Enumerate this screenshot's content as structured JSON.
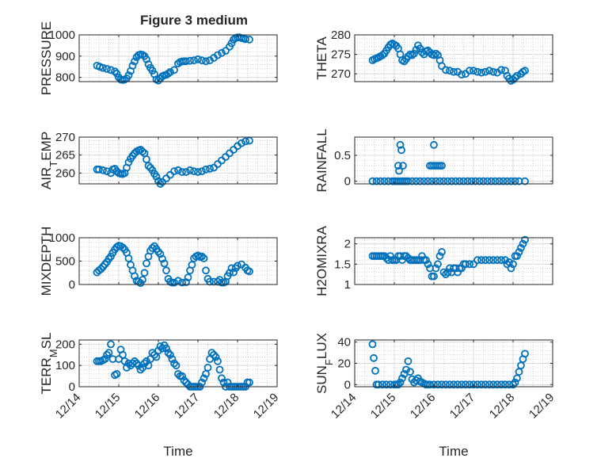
{
  "figure": {
    "title": "Figure 3 medium",
    "marker_color": "#0072BD"
  },
  "chart_data": [
    {
      "id": "pressure",
      "type": "scatter",
      "ylabel": "PRESSURE",
      "xlabel": "",
      "ylim": [
        780,
        1000
      ],
      "yticks": [
        800,
        900,
        1000
      ],
      "ytick_labels": [
        "800",
        "900",
        "1000"
      ],
      "xlim": [
        0,
        5
      ],
      "xticks": [
        0,
        1,
        2,
        3,
        4,
        5
      ],
      "xtick_labels": [],
      "grid": true,
      "x": [
        0.45,
        0.52,
        0.6,
        0.7,
        0.8,
        0.9,
        0.95,
        1.0,
        1.05,
        1.1,
        1.15,
        1.2,
        1.25,
        1.3,
        1.35,
        1.4,
        1.45,
        1.5,
        1.55,
        1.6,
        1.65,
        1.7,
        1.75,
        1.8,
        1.85,
        1.9,
        1.95,
        2.0,
        2.05,
        2.1,
        2.15,
        2.2,
        2.25,
        2.3,
        2.4,
        2.5,
        2.55,
        2.6,
        2.65,
        2.7,
        2.8,
        2.9,
        3.0,
        3.1,
        3.2,
        3.3,
        3.4,
        3.5,
        3.6,
        3.7,
        3.8,
        3.85,
        3.9,
        3.95,
        4.0,
        4.05,
        4.1,
        4.15,
        4.2,
        4.3
      ],
      "y": [
        855,
        850,
        845,
        840,
        835,
        828,
        818,
        800,
        790,
        788,
        790,
        795,
        810,
        830,
        855,
        875,
        895,
        905,
        908,
        906,
        900,
        885,
        862,
        845,
        832,
        815,
        790,
        785,
        795,
        805,
        810,
        812,
        818,
        825,
        835,
        865,
        872,
        875,
        876,
        876,
        878,
        880,
        885,
        880,
        876,
        880,
        892,
        905,
        915,
        925,
        945,
        960,
        978,
        985,
        988,
        988,
        985,
        983,
        980,
        978
      ]
    },
    {
      "id": "theta",
      "type": "scatter",
      "ylabel": "THETA",
      "xlabel": "",
      "ylim": [
        268,
        280
      ],
      "yticks": [
        270,
        275,
        280
      ],
      "ytick_labels": [
        "270",
        "275",
        "280"
      ],
      "xlim": [
        0,
        5
      ],
      "xticks": [
        0,
        1,
        2,
        3,
        4,
        5
      ],
      "xtick_labels": [],
      "grid": true,
      "x": [
        0.45,
        0.5,
        0.55,
        0.6,
        0.65,
        0.7,
        0.75,
        0.8,
        0.85,
        0.9,
        0.95,
        1.0,
        1.05,
        1.1,
        1.15,
        1.2,
        1.25,
        1.3,
        1.35,
        1.4,
        1.45,
        1.5,
        1.55,
        1.6,
        1.65,
        1.7,
        1.75,
        1.8,
        1.85,
        1.9,
        1.95,
        2.0,
        2.05,
        2.1,
        2.15,
        2.2,
        2.3,
        2.4,
        2.5,
        2.6,
        2.7,
        2.8,
        2.9,
        3.0,
        3.1,
        3.2,
        3.3,
        3.4,
        3.5,
        3.6,
        3.7,
        3.8,
        3.85,
        3.9,
        3.95,
        4.0,
        4.05,
        4.1,
        4.2,
        4.25,
        4.3
      ],
      "y": [
        273.5,
        273.8,
        274.0,
        274.2,
        274.5,
        274.8,
        275.2,
        276.0,
        276.8,
        277.5,
        277.8,
        277.5,
        277.2,
        276.5,
        275.0,
        273.5,
        273.2,
        273.8,
        274.5,
        275.0,
        274.8,
        275.2,
        276.2,
        277.3,
        276.5,
        275.5,
        275.0,
        275.8,
        276.0,
        275.5,
        275.0,
        274.8,
        275.2,
        274.8,
        273.5,
        272.0,
        271.0,
        270.8,
        270.5,
        270.5,
        269.8,
        270.0,
        270.8,
        270.8,
        270.5,
        270.3,
        270.5,
        270.8,
        270.5,
        270.3,
        271.0,
        270.8,
        269.5,
        268.8,
        268.2,
        268.5,
        269.0,
        269.5,
        270.0,
        270.5,
        270.8
      ]
    },
    {
      "id": "air_temp",
      "type": "scatter",
      "ylabel": "AIR_TEMP",
      "xlabel": "",
      "ylim": [
        257,
        270
      ],
      "yticks": [
        260,
        265,
        270
      ],
      "ytick_labels": [
        "260",
        "265",
        "270"
      ],
      "xlim": [
        0,
        5
      ],
      "xticks": [
        0,
        1,
        2,
        3,
        4,
        5
      ],
      "xtick_labels": [],
      "grid": true,
      "x": [
        0.45,
        0.5,
        0.6,
        0.7,
        0.8,
        0.85,
        0.9,
        0.95,
        1.0,
        1.05,
        1.1,
        1.15,
        1.2,
        1.25,
        1.3,
        1.35,
        1.4,
        1.45,
        1.5,
        1.55,
        1.6,
        1.65,
        1.7,
        1.75,
        1.8,
        1.85,
        1.9,
        1.95,
        2.0,
        2.05,
        2.1,
        2.2,
        2.3,
        2.4,
        2.5,
        2.6,
        2.7,
        2.8,
        2.9,
        3.0,
        3.1,
        3.2,
        3.3,
        3.4,
        3.5,
        3.6,
        3.7,
        3.8,
        3.9,
        4.0,
        4.1,
        4.2,
        4.3
      ],
      "y": [
        261.0,
        261.0,
        260.8,
        260.5,
        260.0,
        261.0,
        261.2,
        260.5,
        260.0,
        259.8,
        259.7,
        260.0,
        261.5,
        263.0,
        264.0,
        264.8,
        265.5,
        266.0,
        266.3,
        266.5,
        266.0,
        265.5,
        263.8,
        262.0,
        261.5,
        260.8,
        259.8,
        259.0,
        257.8,
        257.0,
        257.5,
        258.5,
        259.5,
        260.5,
        260.8,
        260.3,
        260.3,
        260.8,
        260.5,
        260.3,
        260.5,
        261.0,
        261.2,
        261.5,
        262.5,
        263.5,
        264.5,
        265.5,
        266.5,
        267.5,
        268.3,
        268.8,
        269.0
      ]
    },
    {
      "id": "rainfall",
      "type": "scatter",
      "ylabel": "RAINFALL",
      "xlabel": "",
      "ylim": [
        -0.05,
        0.85
      ],
      "yticks": [
        0,
        0.5
      ],
      "ytick_labels": [
        "0",
        "0.5"
      ],
      "xlim": [
        0,
        5
      ],
      "xticks": [
        0,
        1,
        2,
        3,
        4,
        5
      ],
      "xtick_labels": [],
      "grid": true,
      "x": [
        0.45,
        0.55,
        0.65,
        0.75,
        0.85,
        0.95,
        1.0,
        1.05,
        1.1,
        1.15,
        1.2,
        1.25,
        1.3,
        1.35,
        1.45,
        1.55,
        1.65,
        1.75,
        1.85,
        1.95,
        2.05,
        2.15,
        2.25,
        2.35,
        2.45,
        2.55,
        2.65,
        2.75,
        2.85,
        2.95,
        3.05,
        3.15,
        3.25,
        3.35,
        3.45,
        3.55,
        3.65,
        3.75,
        3.85,
        3.95,
        4.05,
        4.15,
        4.3,
        1.1,
        1.12,
        1.15,
        1.18,
        1.22,
        1.9,
        1.95,
        2.0,
        2.05,
        2.1,
        2.15,
        2.2,
        2.0
      ],
      "y": [
        0,
        0,
        0,
        0,
        0,
        0,
        0,
        0,
        0,
        0,
        0,
        0,
        0,
        0,
        0,
        0,
        0,
        0,
        0,
        0,
        0,
        0,
        0,
        0,
        0,
        0,
        0,
        0,
        0,
        0,
        0,
        0,
        0,
        0,
        0,
        0,
        0,
        0,
        0,
        0,
        0,
        0,
        0,
        0.3,
        0.2,
        0.7,
        0.6,
        0.3,
        0.3,
        0.3,
        0.3,
        0.3,
        0.3,
        0.3,
        0.3,
        0.7
      ]
    },
    {
      "id": "mixdepth",
      "type": "scatter",
      "ylabel": "MIXDEPTH",
      "xlabel": "",
      "ylim": [
        0,
        1000
      ],
      "yticks": [
        0,
        500,
        1000
      ],
      "ytick_labels": [
        "0",
        "500",
        "1000"
      ],
      "xlim": [
        0,
        5
      ],
      "xticks": [
        0,
        1,
        2,
        3,
        4,
        5
      ],
      "xtick_labels": [],
      "grid": true,
      "x": [
        0.45,
        0.5,
        0.55,
        0.6,
        0.65,
        0.7,
        0.75,
        0.8,
        0.85,
        0.9,
        0.95,
        1.0,
        1.05,
        1.1,
        1.15,
        1.2,
        1.25,
        1.3,
        1.35,
        1.4,
        1.45,
        1.5,
        1.55,
        1.6,
        1.65,
        1.7,
        1.75,
        1.8,
        1.85,
        1.9,
        1.95,
        2.0,
        2.05,
        2.1,
        2.15,
        2.2,
        2.25,
        2.3,
        2.35,
        2.4,
        2.5,
        2.6,
        2.7,
        2.75,
        2.8,
        2.85,
        2.9,
        2.95,
        3.0,
        3.05,
        3.1,
        3.15,
        3.2,
        3.25,
        3.3,
        3.4,
        3.5,
        3.55,
        3.6,
        3.65,
        3.7,
        3.75,
        3.8,
        3.85,
        3.9,
        3.95,
        4.0,
        4.1,
        4.2,
        4.25,
        4.3
      ],
      "y": [
        260,
        300,
        330,
        380,
        430,
        480,
        550,
        600,
        680,
        750,
        800,
        830,
        820,
        790,
        750,
        680,
        560,
        420,
        300,
        180,
        80,
        60,
        30,
        100,
        250,
        450,
        600,
        720,
        780,
        820,
        760,
        700,
        650,
        550,
        450,
        300,
        120,
        60,
        40,
        40,
        80,
        40,
        50,
        150,
        300,
        420,
        560,
        600,
        620,
        590,
        600,
        560,
        300,
        120,
        60,
        60,
        60,
        100,
        40,
        40,
        60,
        180,
        250,
        350,
        260,
        350,
        400,
        430,
        360,
        300,
        280
      ]
    },
    {
      "id": "h2omixra",
      "type": "scatter",
      "ylabel": "H2OMIXRA",
      "xlabel": "",
      "ylim": [
        1,
        2.15
      ],
      "yticks": [
        1,
        1.5,
        2
      ],
      "ytick_labels": [
        "1",
        "1.5",
        "2"
      ],
      "xlim": [
        0,
        5
      ],
      "xticks": [
        0,
        1,
        2,
        3,
        4,
        5
      ],
      "xtick_labels": [],
      "grid": true,
      "x": [
        0.45,
        0.5,
        0.55,
        0.6,
        0.65,
        0.7,
        0.75,
        0.8,
        0.85,
        0.9,
        0.95,
        1.0,
        1.05,
        1.1,
        1.15,
        1.2,
        1.25,
        1.3,
        1.35,
        1.4,
        1.45,
        1.5,
        1.55,
        1.6,
        1.65,
        1.7,
        1.75,
        1.8,
        1.85,
        1.9,
        1.95,
        2.0,
        2.05,
        2.1,
        2.15,
        2.2,
        2.25,
        2.3,
        2.35,
        2.4,
        2.45,
        2.5,
        2.55,
        2.6,
        2.65,
        2.7,
        2.75,
        2.8,
        2.9,
        3.0,
        3.1,
        3.2,
        3.3,
        3.4,
        3.5,
        3.6,
        3.7,
        3.8,
        3.85,
        3.9,
        3.95,
        4.0,
        4.05,
        4.1,
        4.15,
        4.2,
        4.25,
        4.3
      ],
      "y": [
        1.7,
        1.7,
        1.7,
        1.7,
        1.7,
        1.7,
        1.7,
        1.65,
        1.6,
        1.7,
        1.6,
        1.6,
        1.6,
        1.7,
        1.7,
        1.6,
        1.7,
        1.7,
        1.65,
        1.6,
        1.6,
        1.6,
        1.6,
        1.6,
        1.6,
        1.7,
        1.6,
        1.6,
        1.5,
        1.4,
        1.2,
        1.2,
        1.4,
        1.5,
        1.7,
        1.8,
        1.3,
        1.25,
        1.3,
        1.4,
        1.3,
        1.4,
        1.4,
        1.3,
        1.4,
        1.4,
        1.5,
        1.5,
        1.5,
        1.5,
        1.6,
        1.6,
        1.6,
        1.6,
        1.6,
        1.6,
        1.6,
        1.6,
        1.5,
        1.55,
        1.4,
        1.5,
        1.7,
        1.7,
        1.8,
        1.9,
        2.0,
        2.1
      ]
    },
    {
      "id": "terr_msl",
      "type": "scatter",
      "ylabel": "TERR_MSL",
      "xlabel": "Time",
      "ylim": [
        0,
        220
      ],
      "yticks": [
        0,
        100,
        200
      ],
      "ytick_labels": [
        "0",
        "100",
        "200"
      ],
      "xlim": [
        0,
        5
      ],
      "xticks": [
        0,
        1,
        2,
        3,
        4,
        5
      ],
      "xtick_labels": [
        "12/14",
        "12/15",
        "12/16",
        "12/17",
        "12/18",
        "12/19"
      ],
      "grid": true,
      "x": [
        0.45,
        0.5,
        0.55,
        0.6,
        0.65,
        0.7,
        0.75,
        0.8,
        0.85,
        0.9,
        0.95,
        1.0,
        1.05,
        1.1,
        1.15,
        1.2,
        1.25,
        1.3,
        1.35,
        1.4,
        1.45,
        1.5,
        1.55,
        1.6,
        1.65,
        1.7,
        1.75,
        1.8,
        1.85,
        1.9,
        1.95,
        2.0,
        2.05,
        2.1,
        2.15,
        2.2,
        2.25,
        2.3,
        2.35,
        2.4,
        2.45,
        2.5,
        2.55,
        2.6,
        2.65,
        2.7,
        2.75,
        2.8,
        2.85,
        2.9,
        2.95,
        3.0,
        3.05,
        3.1,
        3.15,
        3.2,
        3.25,
        3.3,
        3.35,
        3.4,
        3.45,
        3.5,
        3.55,
        3.6,
        3.65,
        3.7,
        3.75,
        3.8,
        3.85,
        3.9,
        3.95,
        4.0,
        4.05,
        4.1,
        4.15,
        4.2,
        4.25,
        4.3
      ],
      "y": [
        120,
        120,
        120,
        125,
        130,
        150,
        160,
        200,
        130,
        55,
        60,
        130,
        175,
        150,
        120,
        90,
        110,
        100,
        110,
        120,
        110,
        100,
        80,
        90,
        110,
        120,
        100,
        130,
        160,
        150,
        140,
        170,
        190,
        180,
        195,
        180,
        160,
        150,
        130,
        110,
        100,
        60,
        50,
        50,
        30,
        20,
        10,
        0,
        0,
        0,
        0,
        0,
        0,
        20,
        40,
        60,
        90,
        130,
        160,
        150,
        140,
        120,
        80,
        40,
        20,
        0,
        20,
        0,
        0,
        0,
        0,
        0,
        0,
        0,
        0,
        0,
        20,
        20
      ]
    },
    {
      "id": "sun_flux",
      "type": "scatter",
      "ylabel": "SUN_FLUX",
      "xlabel": "Time",
      "ylim": [
        -2,
        42
      ],
      "yticks": [
        0,
        20,
        40
      ],
      "ytick_labels": [
        "0",
        "20",
        "40"
      ],
      "xlim": [
        0,
        5
      ],
      "xticks": [
        0,
        1,
        2,
        3,
        4,
        5
      ],
      "xtick_labels": [
        "12/14",
        "12/15",
        "12/16",
        "12/17",
        "12/18",
        "12/19"
      ],
      "grid": true,
      "x": [
        0.45,
        0.48,
        0.52,
        0.55,
        0.6,
        0.7,
        0.8,
        0.9,
        1.0,
        1.05,
        1.1,
        1.15,
        1.2,
        1.25,
        1.3,
        1.35,
        1.4,
        1.45,
        1.5,
        1.55,
        1.6,
        1.65,
        1.7,
        1.75,
        1.8,
        1.85,
        1.9,
        2.0,
        2.1,
        2.2,
        2.3,
        2.4,
        2.5,
        2.6,
        2.7,
        2.8,
        2.9,
        3.0,
        3.1,
        3.2,
        3.3,
        3.4,
        3.5,
        3.6,
        3.7,
        3.8,
        3.9,
        4.0,
        4.05,
        4.1,
        4.15,
        4.2,
        4.25,
        4.3
      ],
      "y": [
        38,
        25,
        13,
        0,
        0,
        0,
        0,
        0,
        0,
        0,
        0,
        2,
        6,
        10,
        14,
        22,
        12,
        5,
        2,
        4,
        6,
        3,
        2,
        1,
        0,
        0,
        0,
        0,
        0,
        0,
        0,
        0,
        0,
        0,
        0,
        0,
        0,
        0,
        0,
        0,
        0,
        0,
        0,
        0,
        0,
        0,
        0,
        0,
        2,
        6,
        12,
        18,
        24,
        29
      ]
    }
  ]
}
